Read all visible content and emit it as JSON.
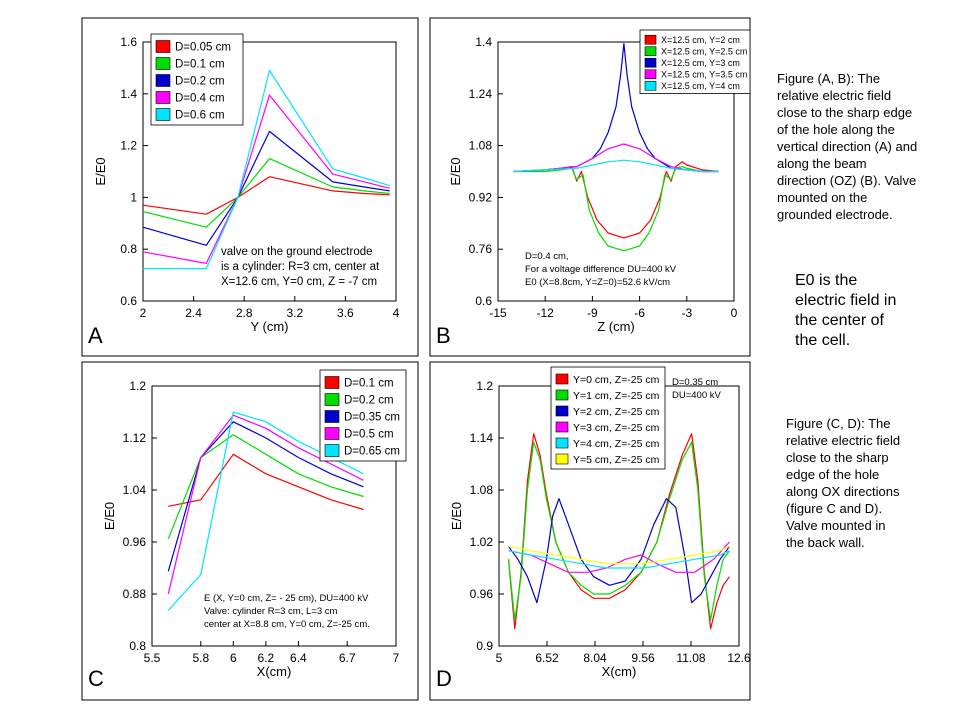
{
  "captions": {
    "ab": [
      "Figure (A, B): The",
      "relative electric field",
      "close to the sharp edge",
      "of the hole along the",
      "vertical direction (A) and",
      "along the beam",
      "direction (OZ) (B). Valve",
      "mounted on the",
      "grounded electrode."
    ],
    "e0": [
      "E0 is the",
      "electric field in",
      "the center of",
      "the cell."
    ],
    "cd": [
      "Figure (C, D): The",
      "relative electric field",
      "close to the sharp",
      "edge of the hole",
      "along OX directions",
      "(figure C and D).",
      "Valve mounted in",
      "the back wall."
    ]
  },
  "chart_data": [
    {
      "type": "line",
      "panel": "A",
      "xlabel": "Y (cm)",
      "ylabel": "E/E0",
      "xlim": [
        2,
        4
      ],
      "ylim": [
        0.6,
        1.6
      ],
      "xticks": [
        "2",
        "2.4",
        "2.8",
        "3.2",
        "3.6",
        "4"
      ],
      "xtick_values": [
        2,
        2.4,
        2.8,
        3.2,
        3.6,
        4
      ],
      "yticks": [
        "0.6",
        "0.8",
        "1",
        "1.2",
        "1.4",
        "1.6"
      ],
      "ytick_values": [
        0.6,
        0.8,
        1.0,
        1.2,
        1.4,
        1.6
      ],
      "legend_position": "top-left",
      "annotation": [
        "valve on the ground electrode",
        "is a cylinder:  R=3 cm, center at",
        "X=12.6 cm, Y=0 cm, Z = -7 cm"
      ],
      "series": [
        {
          "name": "D=0.05 cm",
          "color": "#ff0000",
          "x": [
            2,
            2.5,
            2.75,
            3.0,
            3.5,
            3.75,
            3.95
          ],
          "y": [
            0.97,
            0.935,
            1.0,
            1.08,
            1.025,
            1.015,
            1.01
          ]
        },
        {
          "name": "D=0.1 cm",
          "color": "#00dd00",
          "x": [
            2,
            2.5,
            2.75,
            3.0,
            3.5,
            3.75,
            3.95
          ],
          "y": [
            0.945,
            0.885,
            1.0,
            1.15,
            1.04,
            1.025,
            1.015
          ]
        },
        {
          "name": "D=0.2 cm",
          "color": "#0000cc",
          "x": [
            2,
            2.5,
            2.75,
            3.0,
            3.5,
            3.75,
            3.95
          ],
          "y": [
            0.885,
            0.815,
            1.0,
            1.255,
            1.06,
            1.04,
            1.025
          ]
        },
        {
          "name": "D=0.4 cm",
          "color": "#ff00ff",
          "x": [
            2,
            2.5,
            2.75,
            3.0,
            3.5,
            3.75,
            3.95
          ],
          "y": [
            0.79,
            0.745,
            1.0,
            1.395,
            1.09,
            1.06,
            1.035
          ]
        },
        {
          "name": "D=0.6 cm",
          "color": "#00e5ff",
          "x": [
            2,
            2.5,
            2.75,
            3.0,
            3.5,
            3.75,
            3.95
          ],
          "y": [
            0.725,
            0.725,
            1.0,
            1.49,
            1.11,
            1.075,
            1.045
          ]
        }
      ]
    },
    {
      "type": "line",
      "panel": "B",
      "xlabel": "Z (cm)",
      "ylabel": "E/E0",
      "xlim": [
        -15,
        0
      ],
      "ylim": [
        0.6,
        1.4
      ],
      "xticks": [
        "-15",
        "-12",
        "-9",
        "-6",
        "-3",
        "0"
      ],
      "xtick_values": [
        -15,
        -12,
        -9,
        -6,
        -3,
        0
      ],
      "yticks": [
        "0.6",
        "0.76",
        "0.92",
        "1.08",
        "1.24",
        "1.4"
      ],
      "ytick_values": [
        0.6,
        0.76,
        0.92,
        1.08,
        1.24,
        1.4
      ],
      "legend_position": "top-right",
      "annotation": [
        "D=0.4 cm,",
        "For a voltage difference DU=400 kV",
        "E0 (X=8.8cm, Y=Z=0)=52.6 kV/cm"
      ],
      "series": [
        {
          "name": "X=12.5 cm,  Y=2 cm",
          "color": "#ff0000",
          "x": [
            -14,
            -12,
            -11,
            -10.3,
            -10,
            -9.7,
            -9.3,
            -8.7,
            -8,
            -7,
            -6,
            -5.3,
            -4.7,
            -4.3,
            -4,
            -3.7,
            -3.3,
            -3,
            -2,
            -1
          ],
          "y": [
            1.0,
            1.005,
            1.01,
            1.015,
            0.97,
            1.0,
            0.92,
            0.85,
            0.81,
            0.795,
            0.81,
            0.85,
            0.92,
            1.0,
            0.97,
            1.015,
            1.03,
            1.02,
            1.005,
            1.0
          ]
        },
        {
          "name": "X=12.5 cm,  Y=2.5 cm",
          "color": "#00dd00",
          "x": [
            -14,
            -12,
            -11,
            -10.3,
            -10,
            -9.6,
            -9.2,
            -8.6,
            -8,
            -7,
            -6,
            -5.4,
            -4.8,
            -4.4,
            -4,
            -3.7,
            -3.3,
            -3,
            -2,
            -1
          ],
          "y": [
            1.0,
            1.0,
            1.005,
            1.01,
            0.975,
            0.99,
            0.88,
            0.81,
            0.77,
            0.755,
            0.77,
            0.81,
            0.88,
            0.99,
            0.975,
            1.01,
            1.015,
            1.01,
            1.0,
            1.0
          ]
        },
        {
          "name": "X=12.5 cm,  Y=3 cm",
          "color": "#0000cc",
          "x": [
            -14,
            -12,
            -10,
            -9,
            -8.5,
            -8,
            -7.5,
            -7.2,
            -7,
            -6.8,
            -6.5,
            -6,
            -5.5,
            -5,
            -4,
            -3,
            -2,
            -1
          ],
          "y": [
            1.0,
            1.005,
            1.015,
            1.04,
            1.07,
            1.12,
            1.2,
            1.3,
            1.395,
            1.3,
            1.2,
            1.12,
            1.07,
            1.04,
            1.01,
            1.005,
            1.0,
            1.0
          ]
        },
        {
          "name": "X=12.5 cm,  Y=3.5 cm",
          "color": "#ff00ff",
          "x": [
            -14,
            -12,
            -10,
            -9,
            -8,
            -7,
            -6,
            -5,
            -4,
            -3,
            -2,
            -1
          ],
          "y": [
            1.0,
            1.005,
            1.015,
            1.04,
            1.07,
            1.085,
            1.07,
            1.04,
            1.015,
            1.005,
            1.0,
            1.0
          ]
        },
        {
          "name": "X=12.5 cm,  Y=4 cm",
          "color": "#00e5ff",
          "x": [
            -14,
            -12,
            -10,
            -9,
            -8,
            -7,
            -6,
            -5,
            -4,
            -3,
            -2,
            -1
          ],
          "y": [
            1.0,
            1.005,
            1.01,
            1.02,
            1.03,
            1.035,
            1.03,
            1.02,
            1.01,
            1.005,
            1.0,
            1.0
          ]
        }
      ]
    },
    {
      "type": "line",
      "panel": "C",
      "xlabel": "X(cm)",
      "ylabel": "E/E0",
      "xlim": [
        5.5,
        7
      ],
      "ylim": [
        0.8,
        1.2
      ],
      "xticks": [
        "5.5",
        "5.8",
        "6",
        "6.2",
        "6.4",
        "6.7",
        "7"
      ],
      "xtick_values": [
        5.5,
        5.8,
        6.0,
        6.2,
        6.4,
        6.7,
        7.0
      ],
      "yticks": [
        "0.8",
        "0.88",
        "0.96",
        "1.04",
        "1.12",
        "1.2"
      ],
      "ytick_values": [
        0.8,
        0.88,
        0.96,
        1.04,
        1.12,
        1.2
      ],
      "legend_position": "top-right",
      "annotation": [
        "E (X, Y=0 cm, Z= - 25 cm), DU=400 kV",
        "Valve: cylinder R=3 cm, L=3 cm",
        "center at X=8.8 cm, Y=0 cm, Z=-25 cm."
      ],
      "series": [
        {
          "name": "D=0.1 cm",
          "color": "#ff0000",
          "x": [
            5.6,
            5.8,
            6.0,
            6.2,
            6.4,
            6.6,
            6.8
          ],
          "y": [
            1.015,
            1.025,
            1.095,
            1.065,
            1.045,
            1.025,
            1.01
          ]
        },
        {
          "name": "D=0.2 cm",
          "color": "#00dd00",
          "x": [
            5.6,
            5.8,
            6.0,
            6.2,
            6.4,
            6.6,
            6.8
          ],
          "y": [
            0.965,
            1.09,
            1.125,
            1.095,
            1.065,
            1.045,
            1.03
          ]
        },
        {
          "name": "D=0.35 cm",
          "color": "#0000cc",
          "x": [
            5.6,
            5.8,
            6.0,
            6.2,
            6.4,
            6.6,
            6.8
          ],
          "y": [
            0.915,
            1.09,
            1.145,
            1.12,
            1.09,
            1.065,
            1.045
          ]
        },
        {
          "name": "D=0.5 cm",
          "color": "#ff00ff",
          "x": [
            5.6,
            5.8,
            6.0,
            6.2,
            6.4,
            6.6,
            6.8
          ],
          "y": [
            0.88,
            1.09,
            1.155,
            1.135,
            1.105,
            1.08,
            1.055
          ]
        },
        {
          "name": "D=0.65 cm",
          "color": "#00e5ff",
          "x": [
            5.6,
            5.8,
            6.0,
            6.2,
            6.4,
            6.6,
            6.8
          ],
          "y": [
            0.855,
            0.91,
            1.16,
            1.145,
            1.115,
            1.09,
            1.065
          ]
        }
      ]
    },
    {
      "type": "line",
      "panel": "D",
      "xlabel": "X(cm)",
      "ylabel": "E/E0",
      "xlim": [
        5,
        12.6
      ],
      "ylim": [
        0.9,
        1.2
      ],
      "xticks": [
        "5",
        "6.52",
        "8.04",
        "9.56",
        "11.08",
        "12.6"
      ],
      "xtick_values": [
        5,
        6.52,
        8.04,
        9.56,
        11.08,
        12.6
      ],
      "yticks": [
        "0.9",
        "0.96",
        "1.02",
        "1.08",
        "1.14",
        "1.2"
      ],
      "ytick_values": [
        0.9,
        0.96,
        1.02,
        1.08,
        1.14,
        1.2
      ],
      "legend_position": "top-left",
      "annotation": [
        "D=0.35 cm",
        "DU=400 kV"
      ],
      "series": [
        {
          "name": "Y=0 cm, Z=-25 cm",
          "color": "#ff0000",
          "x": [
            5.3,
            5.5,
            5.7,
            5.9,
            6.1,
            6.3,
            6.5,
            6.8,
            7.2,
            7.6,
            8.0,
            8.5,
            9.0,
            9.5,
            10.0,
            10.4,
            10.8,
            11.1,
            11.3,
            11.5,
            11.7,
            11.9,
            12.1,
            12.3
          ],
          "y": [
            1.0,
            0.92,
            0.985,
            1.09,
            1.145,
            1.12,
            1.075,
            1.02,
            0.985,
            0.965,
            0.955,
            0.955,
            0.965,
            0.985,
            1.02,
            1.075,
            1.12,
            1.145,
            1.09,
            0.985,
            0.92,
            0.95,
            0.97,
            0.98
          ]
        },
        {
          "name": "Y=1 cm, Z=-25 cm",
          "color": "#00dd00",
          "x": [
            5.3,
            5.5,
            5.7,
            5.9,
            6.1,
            6.3,
            6.5,
            6.8,
            7.2,
            7.6,
            8.0,
            8.5,
            9.0,
            9.5,
            10.0,
            10.4,
            10.8,
            11.1,
            11.3,
            11.5,
            11.7,
            11.9,
            12.1,
            12.3
          ],
          "y": [
            1.0,
            0.93,
            0.98,
            1.08,
            1.135,
            1.115,
            1.07,
            1.02,
            0.985,
            0.97,
            0.96,
            0.96,
            0.97,
            0.985,
            1.02,
            1.07,
            1.115,
            1.135,
            1.08,
            0.98,
            0.93,
            0.97,
            1.0,
            1.01
          ]
        },
        {
          "name": "Y=2 cm, Z=-25 cm",
          "color": "#0000cc",
          "x": [
            5.3,
            5.6,
            5.9,
            6.2,
            6.5,
            6.7,
            6.9,
            7.2,
            7.6,
            8.0,
            8.5,
            9.0,
            9.5,
            9.9,
            10.3,
            10.6,
            10.9,
            11.1,
            11.4,
            11.7,
            12.0,
            12.3
          ],
          "y": [
            1.015,
            1.0,
            0.98,
            0.95,
            1.0,
            1.05,
            1.07,
            1.04,
            1.0,
            0.98,
            0.97,
            0.975,
            1.0,
            1.04,
            1.07,
            1.06,
            1.0,
            0.95,
            0.96,
            0.98,
            1.0,
            1.015
          ]
        },
        {
          "name": "Y=3 cm, Z=-25 cm",
          "color": "#ff00ff",
          "x": [
            5.3,
            6.0,
            6.6,
            7.2,
            7.8,
            8.4,
            9.0,
            9.5,
            10.0,
            10.6,
            11.2,
            11.8,
            12.3
          ],
          "y": [
            1.01,
            1.005,
            0.995,
            0.985,
            0.985,
            0.99,
            1.0,
            1.005,
            0.995,
            0.985,
            0.985,
            1.0,
            1.02
          ]
        },
        {
          "name": "Y=4 cm, Z=-25 cm",
          "color": "#00e5ff",
          "x": [
            5.3,
            6.0,
            6.8,
            7.6,
            8.4,
            9.0,
            9.6,
            10.4,
            11.2,
            12.0,
            12.3
          ],
          "y": [
            1.01,
            1.005,
            1.0,
            0.995,
            0.99,
            0.99,
            0.99,
            0.995,
            1.0,
            1.005,
            1.01
          ]
        },
        {
          "name": "Y=5 cm, Z=-25 cm",
          "color": "#ffff00",
          "x": [
            5.3,
            6.0,
            6.8,
            7.6,
            8.4,
            9.0,
            9.6,
            10.4,
            11.2,
            12.0,
            12.3
          ],
          "y": [
            1.015,
            1.01,
            1.005,
            1.0,
            0.995,
            0.995,
            0.995,
            1.0,
            1.005,
            1.01,
            1.015
          ]
        }
      ]
    }
  ]
}
